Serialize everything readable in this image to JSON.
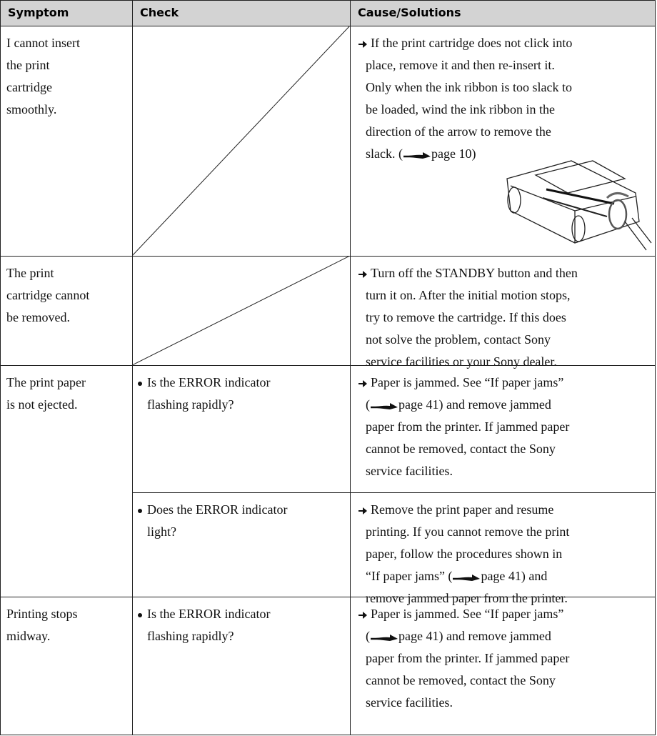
{
  "header": {
    "symptom": "Symptom",
    "check": "Check",
    "cause": "Cause/Solutions"
  },
  "rows": [
    {
      "symptom": [
        "I cannot insert",
        "the print",
        "cartridge",
        "smoothly."
      ],
      "entries": [
        {
          "check": null,
          "cause": [
            "If the print cartridge does not click into",
            "place, remove it and then re-insert it.",
            "Only when the ink ribbon is too slack to",
            "be loaded, wind the ink ribbon in the",
            "direction of the arrow to remove the",
            [
              "slack. (",
              "page 10)"
            ]
          ]
        }
      ]
    },
    {
      "symptom": [
        "The print",
        "cartridge cannot",
        "be removed."
      ],
      "entries": [
        {
          "check": null,
          "cause": [
            "Turn off the STANDBY button and then",
            "turn it on. After the initial motion stops,",
            "try to remove the cartridge. If this does",
            "not solve the problem, contact Sony",
            "service facilities or your Sony dealer."
          ]
        }
      ]
    },
    {
      "symptom": [
        "The print paper",
        "is not ejected."
      ],
      "entries": [
        {
          "check": [
            "Is the ERROR indicator",
            "flashing rapidly?"
          ],
          "cause": [
            "Paper is jammed.  See “If paper jams”",
            [
              "(",
              "page 41) and remove jammed"
            ],
            "paper from the printer.  If jammed paper",
            "cannot be removed, contact the Sony",
            "service facilities."
          ]
        },
        {
          "check": [
            "Does the ERROR indicator",
            "light?"
          ],
          "cause": [
            "Remove the print paper and resume",
            "printing.  If you cannot remove the print",
            "paper, follow the procedures shown in",
            [
              "“If paper jams” (",
              "page 41) and"
            ],
            "remove jammed paper from the printer."
          ]
        }
      ]
    },
    {
      "symptom": [
        "Printing stops",
        "midway."
      ],
      "entries": [
        {
          "check": [
            "Is the ERROR indicator",
            "flashing rapidly?"
          ],
          "cause": [
            "Paper is jammed.  See “If paper jams”",
            [
              "(",
              "page 41) and remove jammed"
            ],
            "paper from the printer.  If jammed paper",
            "cannot be removed, contact the Sony",
            "service facilities."
          ]
        }
      ]
    }
  ]
}
